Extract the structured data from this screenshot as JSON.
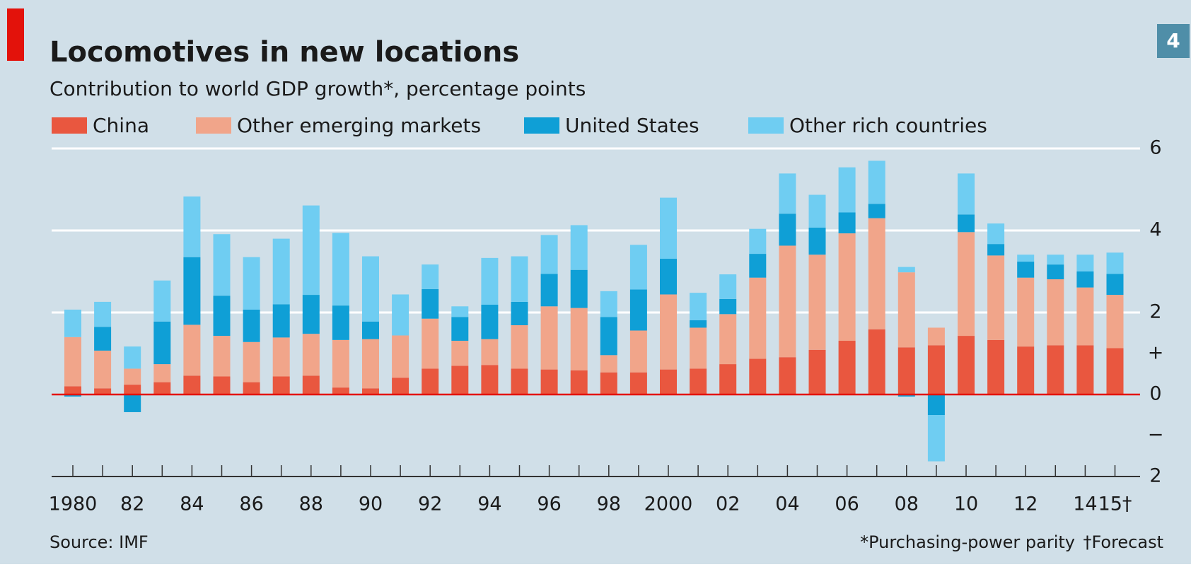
{
  "chart_data": {
    "type": "stacked-bar",
    "title": "Locomotives in new locations",
    "subtitle": "Contribution to world GDP growth*, percentage points",
    "badge": "4",
    "source": "Source: IMF",
    "notes": [
      "*Purchasing-power parity",
      "†Forecast"
    ],
    "categories": [
      "1980",
      null,
      "82",
      null,
      "84",
      null,
      "86",
      null,
      "88",
      null,
      "90",
      null,
      "92",
      null,
      "94",
      null,
      "96",
      null,
      "98",
      null,
      "2000",
      null,
      "02",
      null,
      "04",
      null,
      "06",
      null,
      "08",
      null,
      "10",
      null,
      "12",
      null,
      "14",
      "15†"
    ],
    "series": [
      {
        "name": "China",
        "color": "#e9573f",
        "values": [
          0.2,
          0.15,
          0.24,
          0.3,
          0.46,
          0.44,
          0.3,
          0.44,
          0.46,
          0.17,
          0.15,
          0.41,
          0.63,
          0.7,
          0.72,
          0.63,
          0.61,
          0.59,
          0.54,
          0.54,
          0.61,
          0.63,
          0.74,
          0.87,
          0.91,
          1.09,
          1.31,
          1.59,
          1.15,
          1.2,
          1.43,
          1.33,
          1.17,
          1.2,
          1.2,
          1.13
        ]
      },
      {
        "name": "Other emerging markets",
        "color": "#f1a58a",
        "values": [
          1.2,
          0.92,
          0.39,
          0.44,
          1.24,
          0.99,
          0.98,
          0.95,
          1.02,
          1.16,
          1.2,
          1.03,
          1.22,
          0.61,
          0.63,
          1.06,
          1.54,
          1.52,
          0.42,
          1.02,
          1.83,
          1.0,
          1.22,
          1.98,
          2.72,
          2.32,
          2.62,
          2.71,
          1.83,
          0.43,
          2.53,
          2.06,
          1.68,
          1.61,
          1.41,
          1.3
        ]
      },
      {
        "name": "United States",
        "color": "#0f9fd6",
        "values": [
          -0.05,
          0.58,
          -0.43,
          1.04,
          1.65,
          0.98,
          0.79,
          0.81,
          0.95,
          0.84,
          0.43,
          0,
          0.72,
          0.58,
          0.84,
          0.57,
          0.79,
          0.93,
          0.93,
          1.0,
          0.87,
          0.18,
          0.37,
          0.58,
          0.78,
          0.66,
          0.51,
          0.35,
          -0.05,
          -0.5,
          0.43,
          0.28,
          0.39,
          0.36,
          0.39,
          0.51
        ]
      },
      {
        "name": "Other rich countries",
        "color": "#6fcdf2",
        "values": [
          0.67,
          0.61,
          0.54,
          1.0,
          1.48,
          1.5,
          1.28,
          1.6,
          2.18,
          1.77,
          1.59,
          1.0,
          0.6,
          0.26,
          1.14,
          1.11,
          0.95,
          1.09,
          0.63,
          1.09,
          1.49,
          0.67,
          0.6,
          0.61,
          0.98,
          0.8,
          1.1,
          1.05,
          0.13,
          -1.13,
          1.0,
          0.5,
          0.17,
          0.24,
          0.41,
          0.52
        ]
      }
    ],
    "ylim": [
      -2,
      6
    ],
    "yticks": [
      {
        "value": -2,
        "label": "2"
      },
      {
        "value": -1,
        "label": "−"
      },
      0,
      {
        "value": 1,
        "label": "+"
      },
      2,
      4,
      6
    ],
    "grid": true,
    "zero_line_color": "#e3120b"
  }
}
